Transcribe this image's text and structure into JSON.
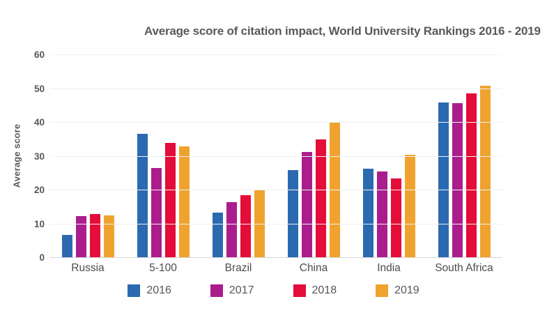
{
  "chart_data": {
    "type": "bar",
    "title": "Average score of citation impact, World University Rankings 2016 - 2019",
    "xlabel": "",
    "ylabel": "Average score",
    "ylim": [
      0,
      60
    ],
    "ytick_step": 10,
    "grid": true,
    "legend_position": "bottom",
    "categories": [
      "Russia",
      "5-100",
      "Brazil",
      "China",
      "India",
      "South Africa"
    ],
    "series": [
      {
        "name": "2016",
        "color": "#2b6ab0",
        "values": [
          6.8,
          36.7,
          13.5,
          26.0,
          26.3,
          46.0
        ]
      },
      {
        "name": "2017",
        "color": "#ab1d8d",
        "values": [
          12.4,
          26.5,
          16.5,
          31.4,
          25.6,
          45.8
        ]
      },
      {
        "name": "2018",
        "color": "#e40c38",
        "values": [
          13.0,
          34.0,
          18.5,
          35.0,
          23.5,
          48.6
        ]
      },
      {
        "name": "2019",
        "color": "#efa32e",
        "values": [
          12.5,
          33.0,
          20.0,
          40.0,
          30.6,
          51.0
        ]
      }
    ],
    "colors": {
      "text": "#58595b",
      "grid": "#f0f0f0",
      "baseline": "#d5d5d5",
      "background": "#ffffff"
    }
  }
}
